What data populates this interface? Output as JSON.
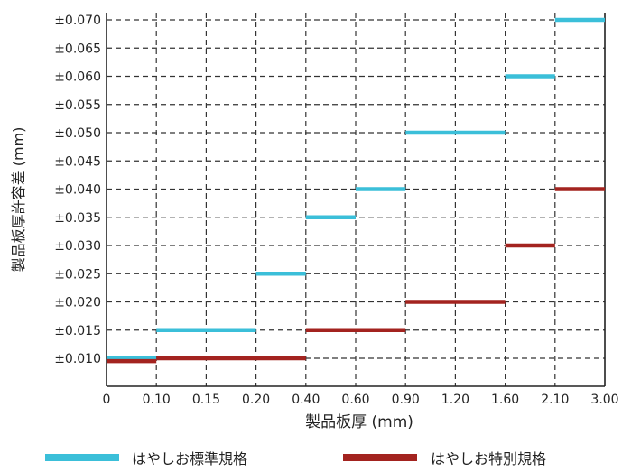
{
  "chart_data": {
    "type": "line",
    "xlabel": "製品板厚 (mm)",
    "ylabel": "製品板厚許容差 (mm)",
    "x_ticks": [
      "0",
      "0.10",
      "0.15",
      "0.20",
      "0.40",
      "0.60",
      "0.90",
      "1.20",
      "1.60",
      "2.10",
      "3.00"
    ],
    "y_ticks": [
      "±0.010",
      "±0.015",
      "±0.020",
      "±0.025",
      "±0.030",
      "±0.035",
      "±0.040",
      "±0.045",
      "±0.050",
      "±0.055",
      "±0.060",
      "±0.065",
      "±0.070"
    ],
    "y_range": [
      0.005,
      0.0715
    ],
    "grid": true,
    "legend_position": "bottom",
    "series": [
      {
        "name": "はやしお標準規格",
        "color": "#3bbfd9",
        "segments": [
          {
            "x_from": "0",
            "x_to": "0.10",
            "y": 0.01
          },
          {
            "x_from": "0.10",
            "x_to": "0.20",
            "y": 0.015
          },
          {
            "x_from": "0.20",
            "x_to": "0.40",
            "y": 0.025
          },
          {
            "x_from": "0.40",
            "x_to": "0.60",
            "y": 0.035
          },
          {
            "x_from": "0.60",
            "x_to": "0.90",
            "y": 0.04
          },
          {
            "x_from": "0.90",
            "x_to": "1.60",
            "y": 0.05
          },
          {
            "x_from": "1.60",
            "x_to": "2.10",
            "y": 0.06
          },
          {
            "x_from": "2.10",
            "x_to": "3.00",
            "y": 0.07
          }
        ]
      },
      {
        "name": "はやしお特別規格",
        "color": "#a3231f",
        "segments": [
          {
            "x_from": "0",
            "x_to": "0.10",
            "y": 0.0095
          },
          {
            "x_from": "0.10",
            "x_to": "0.40",
            "y": 0.01
          },
          {
            "x_from": "0.40",
            "x_to": "0.90",
            "y": 0.015
          },
          {
            "x_from": "0.90",
            "x_to": "1.60",
            "y": 0.02
          },
          {
            "x_from": "1.60",
            "x_to": "2.10",
            "y": 0.03
          },
          {
            "x_from": "2.10",
            "x_to": "3.00",
            "y": 0.04
          }
        ]
      }
    ]
  }
}
